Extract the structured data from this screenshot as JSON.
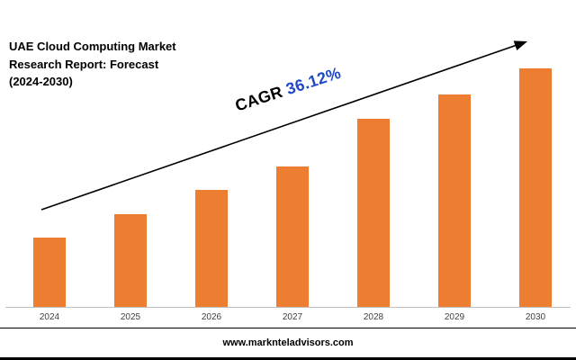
{
  "header": {
    "title_line1": "UAE Cloud Computing Market",
    "title_line2": "Research Report: Forecast",
    "title_line3": "(2024-2030)"
  },
  "annotation": {
    "cagr_label": "CAGR ",
    "cagr_value": "36.12%",
    "cagr_value_color": "#1f49c7",
    "arrow_color": "#000000"
  },
  "chart_data": {
    "type": "bar",
    "title": "UAE Cloud Computing Market Research Report: Forecast (2024-2030)",
    "categories": [
      "2024",
      "2025",
      "2026",
      "2027",
      "2028",
      "2029",
      "2030"
    ],
    "values": [
      29,
      39,
      49,
      59,
      79,
      89,
      100
    ],
    "value_scale": "relative bar height percent (no y-axis shown)",
    "xlabel": "",
    "ylabel": "",
    "ylim": [
      0,
      100
    ],
    "bar_color": "#ED7D31",
    "axis_line_color": "#BFBFBF",
    "grid": false,
    "legend": "none",
    "annotation_text": "CAGR 36.12%",
    "trend_arrow": true
  },
  "footer": {
    "website": "www.marknteladvisors.com"
  }
}
